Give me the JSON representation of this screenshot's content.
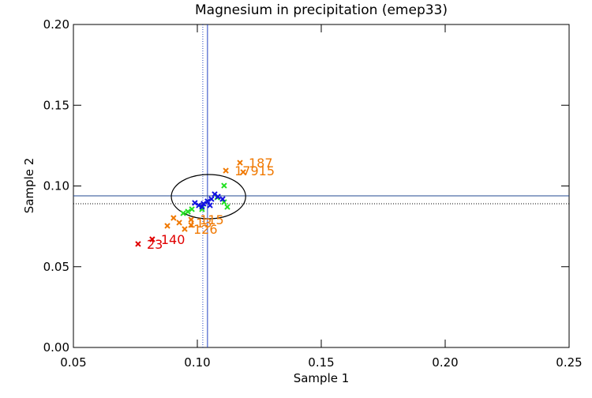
{
  "chart_data": {
    "type": "scatter",
    "title": "Magnesium in precipitation (emep33)",
    "x_label": "Sample 1",
    "y_label": "Sample 2",
    "xlim": [
      0.05,
      0.25
    ],
    "ylim": [
      0.0,
      0.2
    ],
    "xticks": [
      0.05,
      {
        "value": 0.1,
        "label": "0.10"
      },
      0.15,
      {
        "value": 0.2,
        "label": "0.20"
      },
      0.25
    ],
    "yticks": [
      {
        "value": 0.0,
        "label": "0.00"
      },
      0.05,
      {
        "value": 0.1,
        "label": "0.10"
      },
      0.15,
      {
        "value": 0.2,
        "label": "0.20"
      }
    ],
    "series": [
      {
        "color": "#e00000",
        "x": [
          0.0761,
          0.0818
        ],
        "values": [
          0.0641,
          0.067
        ],
        "labels": [
          "23",
          "140"
        ]
      },
      {
        "color": "#f07800",
        "x": [
          0.1172,
          0.1115,
          0.1185,
          0.0879,
          0.0904,
          0.0927,
          0.0975,
          0.0975,
          0.0949
        ],
        "values": [
          0.1144,
          0.1095,
          0.1086,
          0.0753,
          0.0802,
          0.0773,
          0.0792,
          0.0758,
          0.0733
        ],
        "labels": [
          "187",
          "17915",
          null,
          null,
          null,
          "113",
          "115",
          null,
          "126"
        ]
      },
      {
        "color": "#20e020",
        "x": [
          0.0943,
          0.0962,
          0.0978,
          0.1019,
          0.1108,
          0.1108,
          0.1121,
          0.108
        ],
        "values": [
          0.0831,
          0.0841,
          0.0856,
          0.0856,
          0.1002,
          0.09,
          0.087,
          0.0929
        ]
      },
      {
        "color": "#1010e0",
        "x": [
          0.099,
          0.1006,
          0.1025,
          0.1041,
          0.1057,
          0.107,
          0.1083,
          0.1102,
          0.1051,
          0.1019
        ],
        "values": [
          0.0895,
          0.088,
          0.089,
          0.0905,
          0.0919,
          0.0949,
          0.0934,
          0.0919,
          0.088,
          0.087
        ]
      }
    ],
    "vlines": [
      {
        "value": 0.1041,
        "color": "#2040c0",
        "style": "solid"
      },
      {
        "value": 0.1022,
        "color": "#2040c0",
        "style": "dotted"
      }
    ],
    "hlines": [
      {
        "value": 0.0939,
        "color": "#204a90",
        "style": "solid"
      },
      {
        "value": 0.089,
        "color": "#000000",
        "style": "dotted"
      }
    ],
    "ellipse": {
      "cx": 0.1045,
      "cy": 0.0934,
      "rx": 0.015,
      "ry": 0.0137,
      "color": "#000000"
    }
  }
}
